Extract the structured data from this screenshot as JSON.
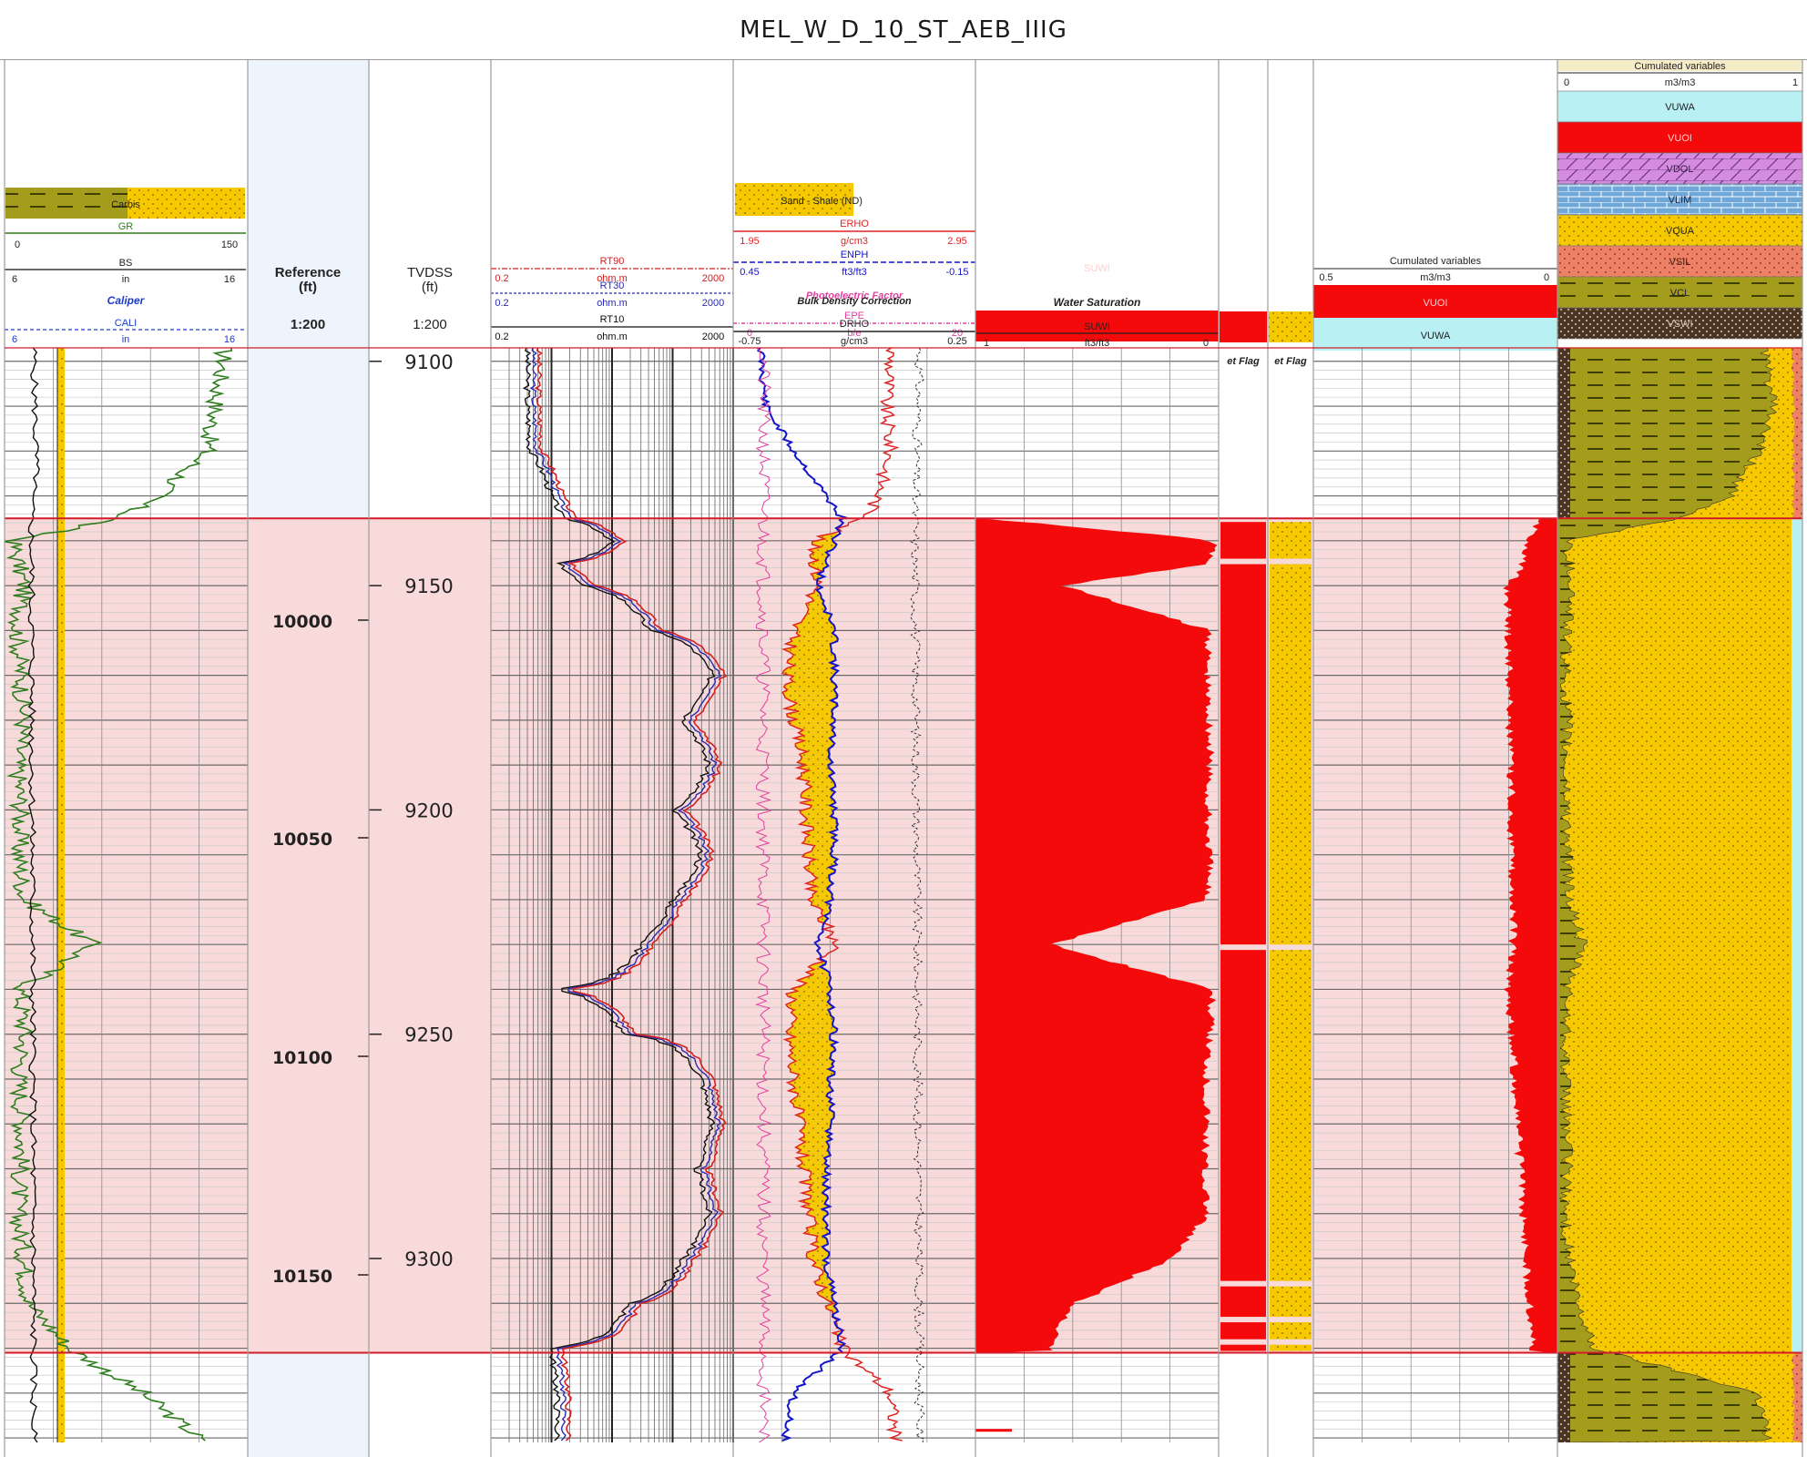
{
  "title": "MEL_W_D_10_ST_AEB_IIIG",
  "colors": {
    "zone": "#f9dada",
    "zone_border": "#d21c2a",
    "sand": "#f5c800",
    "shale": "#a49c1c",
    "water": "#f40a0a",
    "vuwa": "#b8f0f4",
    "gr_curve": "#2e7d1e",
    "bs_curve": "#111111",
    "cali_curve": "#1f7a16",
    "rt90": "#d42020",
    "rt30": "#2a2ab0",
    "rt10": "#111111",
    "rhob": "#e02424",
    "nphi": "#1414c8",
    "pef": "#e040a0",
    "drho": "#333333"
  },
  "tracks": {
    "gr": {
      "lithology_label": "Carbis",
      "gr": {
        "name": "GR",
        "min": "0",
        "max": "150"
      },
      "bs": {
        "name": "BS",
        "min": "6",
        "unit": "in",
        "max": "16"
      },
      "caliper_title": "Caliper",
      "cali": {
        "name": "CALI",
        "min": "6",
        "unit": "in",
        "max": "16"
      }
    },
    "reference": {
      "title": "Reference\n(ft)",
      "scale": "1:200"
    },
    "tvdss": {
      "title": "TVDSS\n(ft)",
      "scale": "1:200"
    },
    "resistivity": {
      "rt90": {
        "name": "RT90",
        "min": "0.2",
        "unit": "ohm.m",
        "max": "2000"
      },
      "rt30": {
        "name": "RT30",
        "min": "0.2",
        "unit": "ohm.m",
        "max": "2000"
      },
      "rt10": {
        "name": "RT10",
        "min": "0.2",
        "unit": "ohm.m",
        "max": "2000"
      }
    },
    "porosity": {
      "fill_label": "Sand - Shale (ND)",
      "rhob": {
        "name": "ERHO",
        "min": "1.95",
        "unit": "g/cm3",
        "max": "2.95"
      },
      "nphi": {
        "name": "ENPH",
        "min": "0.45",
        "unit": "ft3/ft3",
        "max": "-0.15"
      },
      "pef_title": "Photoelectric Factor",
      "pef": {
        "name": "EPE",
        "min": "0",
        "unit": "b/e",
        "max": "20"
      },
      "drho_title": "Bulk Density Correction",
      "drho": {
        "name": "DRHO",
        "min": "-0.75",
        "unit": "g/cm3",
        "max": "0.25"
      }
    },
    "saturation": {
      "fill_label": "SUWI",
      "title": "Water Saturation",
      "suwi": {
        "name": "SUWI",
        "min": "1",
        "unit": "ft3/ft3",
        "max": "0"
      }
    },
    "flags": {
      "net_flag": "et Flag",
      "pay_flag": "et Flag"
    },
    "fluids": {
      "title": "Cumulated variables",
      "scale": {
        "min": "0.5",
        "unit": "m3/m3",
        "max": "0"
      },
      "entries": [
        "VUOI",
        "VUWA"
      ]
    },
    "volumes": {
      "title": "Cumulated variables",
      "scale": {
        "min": "0",
        "unit": "m3/m3",
        "max": "1"
      },
      "entries": [
        "VUWA",
        "VUOI",
        "VDOL",
        "VLIM",
        "VQUA",
        "VSIL",
        "VCL",
        "VSWI"
      ]
    }
  },
  "chart_data": {
    "type": "line",
    "title": "MEL_W_D_10_ST_AEB_IIIG",
    "reference_depth_ticks": [
      10000,
      10050,
      10100,
      10150
    ],
    "tvdss_depth_ticks": [
      9100,
      9150,
      9200,
      9250,
      9300
    ],
    "tvdss_range": [
      9097,
      9341
    ],
    "reservoir_zone_tvdss": [
      9135,
      9321
    ],
    "series": [
      {
        "name": "GR",
        "track": "gr",
        "x": [
          9100,
          9110,
          9120,
          9130,
          9135,
          9140,
          9150,
          9160,
          9170,
          9180,
          9190,
          9200,
          9210,
          9220,
          9230,
          9240,
          9250,
          9260,
          9270,
          9280,
          9290,
          9300,
          9310,
          9320,
          9330,
          9340
        ],
        "values": [
          135,
          130,
          125,
          95,
          70,
          5,
          12,
          8,
          10,
          12,
          8,
          10,
          9,
          12,
          55,
          10,
          12,
          9,
          11,
          10,
          8,
          12,
          15,
          40,
          85,
          120
        ]
      },
      {
        "name": "RT10",
        "track": "resistivity",
        "x": [
          9100,
          9110,
          9120,
          9130,
          9135,
          9140,
          9145,
          9150,
          9160,
          9170,
          9180,
          9190,
          9200,
          9210,
          9220,
          9230,
          9240,
          9250,
          9260,
          9270,
          9280,
          9290,
          9300,
          9310,
          9320,
          9330,
          9340
        ],
        "values": [
          0.8,
          0.8,
          0.9,
          2,
          3,
          20,
          2.5,
          6,
          80,
          900,
          300,
          800,
          200,
          600,
          200,
          60,
          1.8,
          30,
          600,
          900,
          500,
          800,
          300,
          40,
          2,
          2.5,
          2.5
        ]
      },
      {
        "name": "RHOB",
        "track": "porosity",
        "x": [
          9100,
          9110,
          9120,
          9130,
          9135,
          9140,
          9150,
          9160,
          9170,
          9180,
          9190,
          9200,
          9210,
          9220,
          9230,
          9240,
          9250,
          9260,
          9270,
          9280,
          9290,
          9300,
          9310,
          9320,
          9330,
          9340
        ],
        "values": [
          2.6,
          2.58,
          2.6,
          2.55,
          2.5,
          2.28,
          2.3,
          2.2,
          2.17,
          2.2,
          2.24,
          2.25,
          2.26,
          2.27,
          2.38,
          2.2,
          2.18,
          2.2,
          2.22,
          2.24,
          2.26,
          2.28,
          2.34,
          2.4,
          2.6,
          2.62
        ]
      },
      {
        "name": "NPHI",
        "track": "porosity",
        "x": [
          9100,
          9110,
          9120,
          9130,
          9135,
          9140,
          9150,
          9160,
          9170,
          9180,
          9190,
          9200,
          9210,
          9220,
          9230,
          9240,
          9250,
          9260,
          9270,
          9280,
          9290,
          9300,
          9310,
          9320,
          9330,
          9340
        ],
        "values": [
          0.38,
          0.37,
          0.3,
          0.22,
          0.18,
          0.2,
          0.24,
          0.2,
          0.2,
          0.2,
          0.21,
          0.2,
          0.2,
          0.21,
          0.24,
          0.21,
          0.2,
          0.21,
          0.21,
          0.22,
          0.22,
          0.22,
          0.2,
          0.18,
          0.3,
          0.32
        ]
      },
      {
        "name": "SUWI",
        "track": "saturation",
        "x": [
          9135,
          9140,
          9145,
          9150,
          9160,
          9170,
          9180,
          9190,
          9200,
          9210,
          9220,
          9230,
          9240,
          9250,
          9260,
          9270,
          9280,
          9290,
          9300,
          9310,
          9320
        ],
        "values": [
          0.98,
          0.02,
          0.04,
          0.65,
          0.04,
          0.05,
          0.04,
          0.04,
          0.05,
          0.04,
          0.05,
          0.7,
          0.03,
          0.04,
          0.05,
          0.05,
          0.06,
          0.05,
          0.2,
          0.6,
          0.7
        ]
      },
      {
        "name": "VCL",
        "track": "volumes",
        "x": [
          9100,
          9110,
          9120,
          9130,
          9135,
          9140,
          9150,
          9160,
          9170,
          9180,
          9190,
          9200,
          9210,
          9220,
          9230,
          9240,
          9250,
          9260,
          9270,
          9280,
          9290,
          9300,
          9310,
          9320,
          9330,
          9340
        ],
        "values": [
          0.85,
          0.88,
          0.82,
          0.7,
          0.5,
          0.04,
          0.06,
          0.04,
          0.03,
          0.04,
          0.03,
          0.04,
          0.04,
          0.05,
          0.1,
          0.04,
          0.04,
          0.03,
          0.04,
          0.04,
          0.03,
          0.05,
          0.08,
          0.15,
          0.82,
          0.86
        ]
      }
    ]
  }
}
